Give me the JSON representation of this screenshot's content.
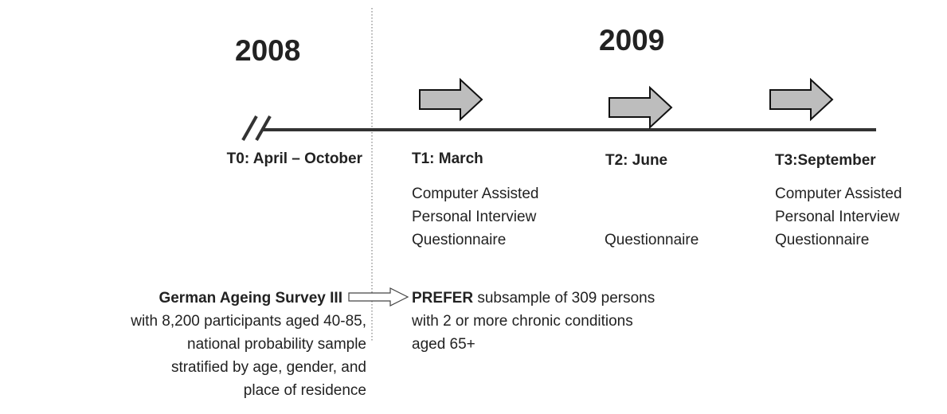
{
  "years": [
    "2008",
    "2009"
  ],
  "timepoints": [
    {
      "label": "T0: April – October"
    },
    {
      "label": "T1: March",
      "lines": [
        "Computer Assisted",
        "Personal Interview",
        "Questionnaire"
      ]
    },
    {
      "label": "T2: June",
      "lines": [
        "Questionnaire"
      ]
    },
    {
      "label": "T3:September",
      "lines": [
        "Computer Assisted",
        "Personal Interview",
        "Questionnaire"
      ]
    }
  ],
  "source": {
    "title": "German Ageing Survey III",
    "lines": [
      "with 8,200 participants aged 40-85,",
      "national probability sample",
      "stratified by age, gender, and",
      "place of residence"
    ]
  },
  "subsample": {
    "name": "PREFER",
    "text": " subsample of 309 persons",
    "lines": [
      "with 2 or more chronic conditions",
      "aged 65+"
    ]
  }
}
